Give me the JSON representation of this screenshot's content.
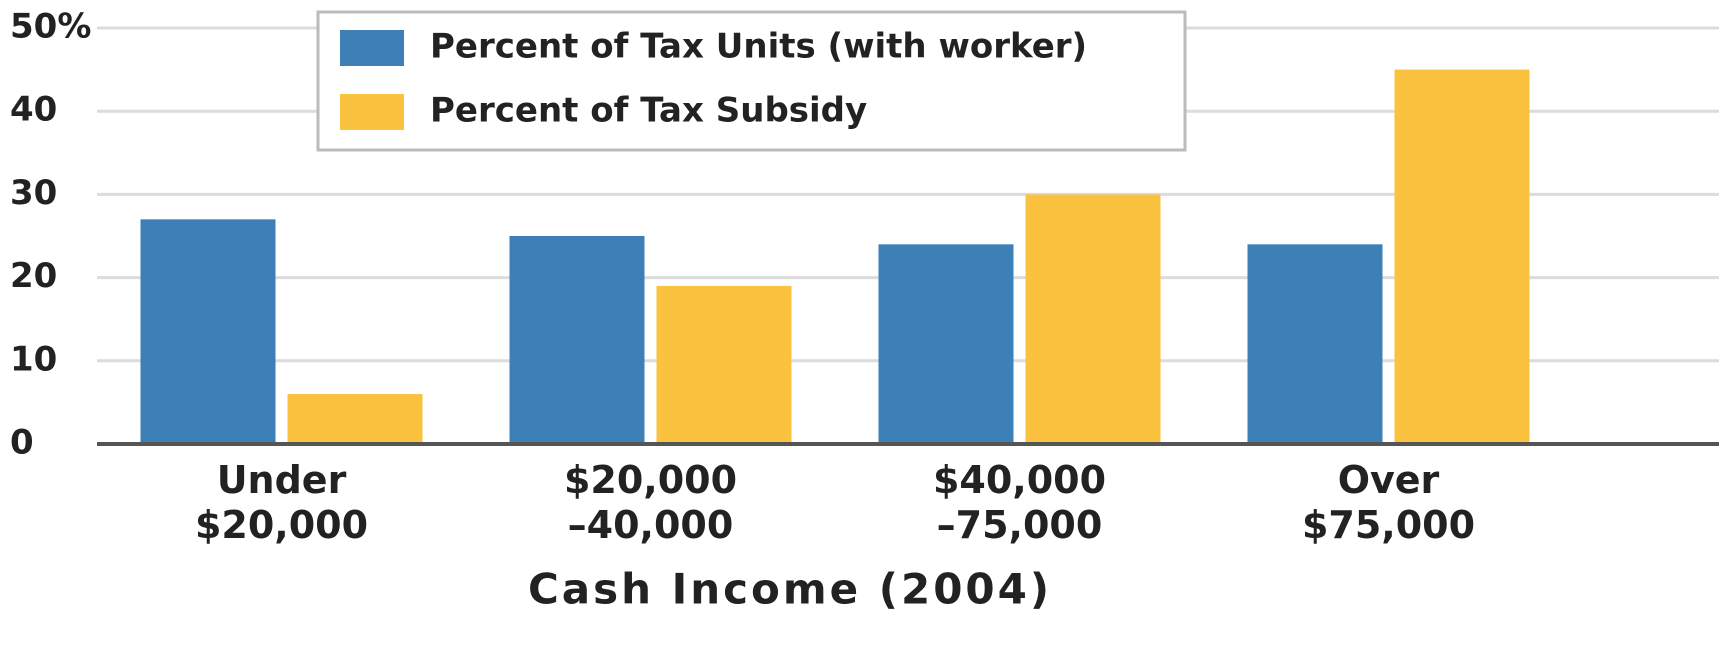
{
  "chart_data": {
    "type": "bar",
    "x_label": "Cash Income (2004)",
    "categories": [
      "Under\n$20,000",
      "$20,000\n–40,000",
      "$40,000\n–75,000",
      "Over\n$75,000"
    ],
    "series": [
      {
        "name": "Percent of Tax Units (with worker)",
        "color": "#3d7fb7",
        "values": [
          27,
          25,
          24,
          24
        ]
      },
      {
        "name": "Percent of Tax Subsidy",
        "color": "#fbc23f",
        "values": [
          6,
          19,
          30,
          45
        ]
      }
    ],
    "ylim": [
      0,
      50
    ],
    "yticks": [
      0,
      10,
      20,
      30,
      40,
      {
        "value": 50,
        "label": "50%"
      }
    ],
    "grid": true,
    "legend": "top"
  }
}
